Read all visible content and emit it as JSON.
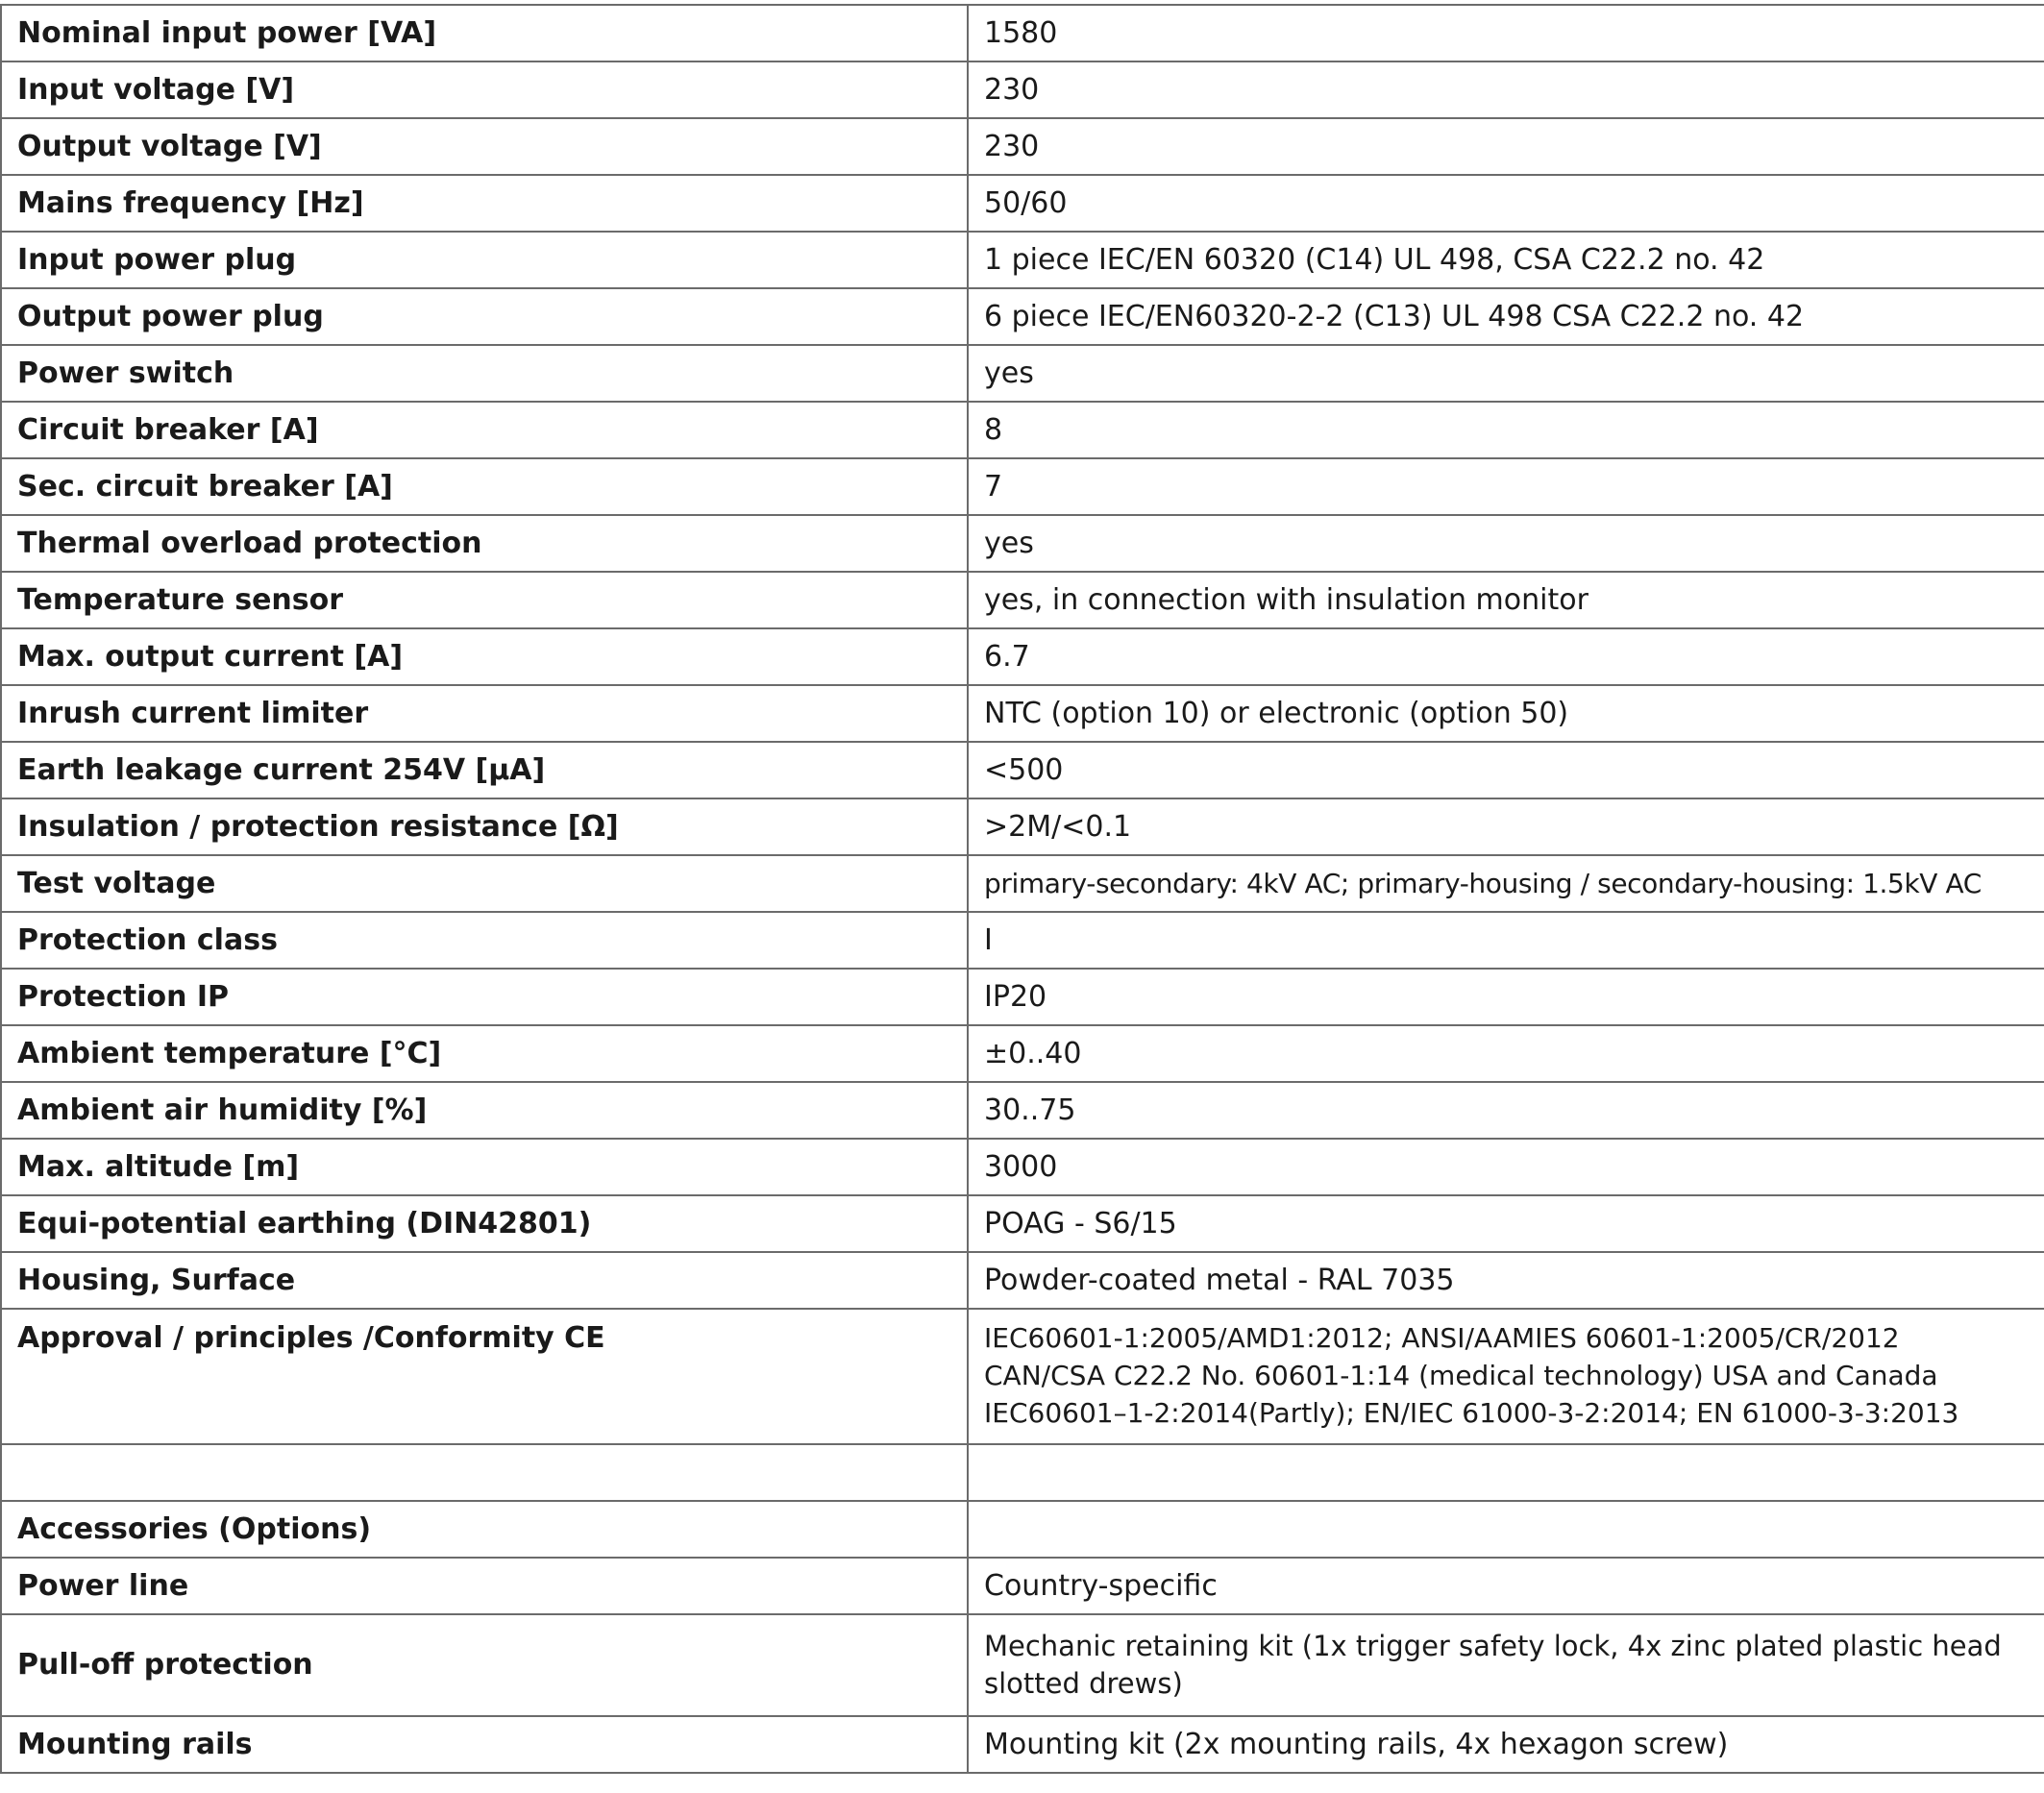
{
  "rows": [
    {
      "label": "Nominal input power [VA]",
      "value": "1580"
    },
    {
      "label": "Input voltage [V]",
      "value": "230"
    },
    {
      "label": "Output voltage [V]",
      "value": "230"
    },
    {
      "label": "Mains frequency [Hz]",
      "value": "50/60"
    },
    {
      "label": "Input power plug",
      "value": "1 piece IEC/EN 60320 (C14) UL 498, CSA C22.2 no. 42"
    },
    {
      "label": "Output power plug",
      "value": "6 piece IEC/EN60320-2-2 (C13) UL 498 CSA C22.2 no. 42"
    },
    {
      "label": "Power switch",
      "value": "yes"
    },
    {
      "label": "Circuit breaker [A]",
      "value": "8"
    },
    {
      "label": "Sec. circuit breaker [A]",
      "value": "7"
    },
    {
      "label": "Thermal overload protection",
      "value": "yes"
    },
    {
      "label": "Temperature sensor",
      "value": "yes, in connection with insulation monitor"
    },
    {
      "label": "Max. output current [A]",
      "value": "6.7"
    },
    {
      "label": "Inrush current limiter",
      "value": "NTC (option 10) or electronic (option 50)"
    },
    {
      "label": "Earth leakage current 254V [µA]",
      "value": "<500"
    },
    {
      "label": "Insulation / protection resistance [Ω]",
      "value": ">2M/<0.1"
    },
    {
      "label": "Test voltage",
      "value": "primary-secondary: 4kV AC; primary-housing / secondary-housing: 1.5kV AC"
    },
    {
      "label": "Protection class",
      "value": "I"
    },
    {
      "label": "Protection IP",
      "value": "IP20"
    },
    {
      "label": "Ambient temperature [°C]",
      "value": "±0..40"
    },
    {
      "label": "Ambient air humidity [%]",
      "value": "30..75"
    },
    {
      "label": "Max. altitude [m]",
      "value": "3000"
    },
    {
      "label": "Equi-potential earthing (DIN42801)",
      "value": "POAG - S6/15"
    },
    {
      "label": "Housing, Surface",
      "value": "Powder-coated metal - RAL 7035"
    },
    {
      "label": "Approval / principles /Conformity CE",
      "value": "IEC60601-1:2005/AMD1:2012; ANSI/AAMIES 60601-1:2005/CR/2012\nCAN/CSA C22.2 No. 60601-1:14 (medical technology) USA and Canada\nIEC60601–1-2:2014(Partly); EN/IEC 61000-3-2:2014; EN 61000-3-3:2013"
    },
    {
      "label": "",
      "value": ""
    },
    {
      "label": "Accessories (Options)",
      "value": ""
    },
    {
      "label": "Power line",
      "value": "Country-specific"
    },
    {
      "label": "Pull-off protection",
      "value": "Mechanic retaining kit (1x trigger safety lock, 4x zinc plated plastic head\nslotted drews)"
    },
    {
      "label": "Mounting rails",
      "value": "Mounting kit (2x mounting rails, 4x hexagon screw)"
    }
  ]
}
